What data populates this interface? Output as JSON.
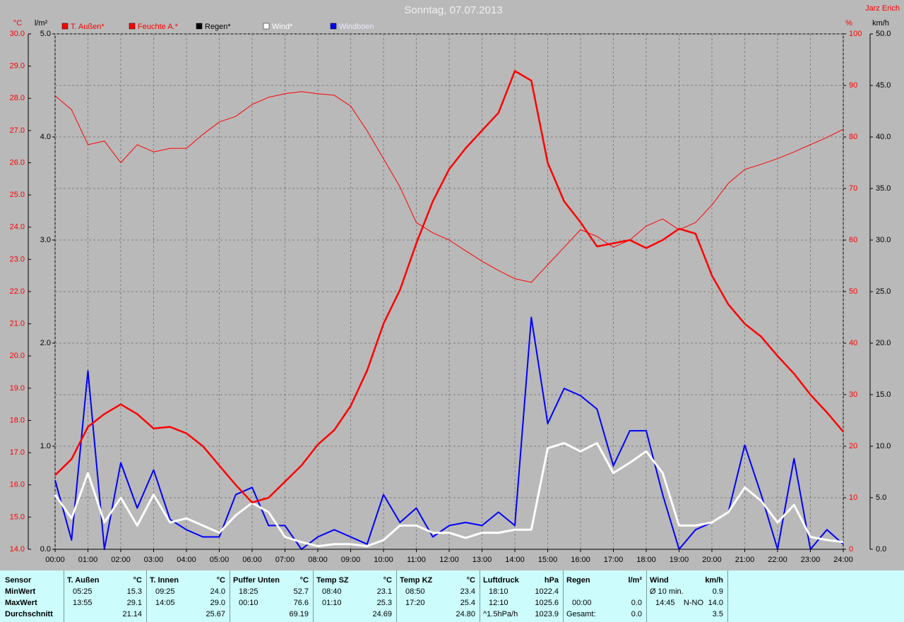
{
  "chart_data": {
    "type": "line",
    "title": "Sonntag, 07.07.2013",
    "author": "Jarz Erich",
    "axis_units": {
      "y": "°C",
      "y3": "l/m²",
      "y2": "%",
      "y4": "km/h"
    },
    "x": [
      "00:00",
      "00:30",
      "01:00",
      "01:30",
      "02:00",
      "02:30",
      "03:00",
      "03:30",
      "04:00",
      "04:30",
      "05:00",
      "05:30",
      "06:00",
      "06:30",
      "07:00",
      "07:30",
      "08:00",
      "08:30",
      "09:00",
      "09:30",
      "10:00",
      "10:30",
      "11:00",
      "11:30",
      "12:00",
      "12:30",
      "13:00",
      "13:30",
      "14:00",
      "14:30",
      "15:00",
      "15:30",
      "16:00",
      "16:30",
      "17:00",
      "17:30",
      "18:00",
      "18:30",
      "19:00",
      "19:30",
      "20:00",
      "20:30",
      "21:00",
      "21:30",
      "22:00",
      "22:30",
      "23:00",
      "23:30",
      "24:00"
    ],
    "xticks": [
      "00:00",
      "01:00",
      "02:00",
      "03:00",
      "04:00",
      "05:00",
      "06:00",
      "07:00",
      "08:00",
      "09:00",
      "10:00",
      "11:00",
      "12:00",
      "13:00",
      "14:00",
      "15:00",
      "16:00",
      "17:00",
      "18:00",
      "19:00",
      "20:00",
      "21:00",
      "22:00",
      "23:00",
      "24:00"
    ],
    "ylim": [
      14,
      30
    ],
    "yticks": [
      {
        "value": 14,
        "label": "14.0"
      },
      {
        "value": 15,
        "label": "15.0"
      },
      {
        "value": 16,
        "label": "16.0"
      },
      {
        "value": 17,
        "label": "17.0"
      },
      {
        "value": 18,
        "label": "18.0"
      },
      {
        "value": 19,
        "label": "19.0"
      },
      {
        "value": 20,
        "label": "20.0"
      },
      {
        "value": 21,
        "label": "21.0"
      },
      {
        "value": 22,
        "label": "22.0"
      },
      {
        "value": 23,
        "label": "23.0"
      },
      {
        "value": 24,
        "label": "24.0"
      },
      {
        "value": 25,
        "label": "25.0"
      },
      {
        "value": 26,
        "label": "26.0"
      },
      {
        "value": 27,
        "label": "27.0"
      },
      {
        "value": 28,
        "label": "28.0"
      },
      {
        "value": 29,
        "label": "29.0"
      },
      {
        "value": 30,
        "label": "30.0"
      }
    ],
    "y3lim": [
      0,
      5
    ],
    "y3ticks": [
      {
        "value": 0,
        "label": "0.0"
      },
      {
        "value": 1,
        "label": "1.0"
      },
      {
        "value": 2,
        "label": "2.0"
      },
      {
        "value": 3,
        "label": "3.0"
      },
      {
        "value": 4,
        "label": "4.0"
      },
      {
        "value": 5,
        "label": "5.0"
      }
    ],
    "y2lim": [
      0,
      100
    ],
    "y2ticks": [
      0,
      10,
      20,
      30,
      40,
      50,
      60,
      70,
      80,
      90,
      100
    ],
    "y4lim": [
      0,
      50
    ],
    "y4ticks": [
      {
        "value": 0,
        "label": "0.0"
      },
      {
        "value": 5,
        "label": "5.0"
      },
      {
        "value": 10,
        "label": "10.0"
      },
      {
        "value": 15,
        "label": "15.0"
      },
      {
        "value": 20,
        "label": "20.0"
      },
      {
        "value": 25,
        "label": "25.0"
      },
      {
        "value": 30,
        "label": "30.0"
      },
      {
        "value": 35,
        "label": "35.0"
      },
      {
        "value": 40,
        "label": "40.0"
      },
      {
        "value": 45,
        "label": "45.0"
      },
      {
        "value": 50,
        "label": "50.0"
      }
    ],
    "grid": true,
    "series": [
      {
        "name": "T. Außen*",
        "color": "#ff0000",
        "axis": "y",
        "width": 2.5,
        "values": [
          16.3,
          16.8,
          17.8,
          18.2,
          18.5,
          18.2,
          17.75,
          17.8,
          17.6,
          17.2,
          16.6,
          16.0,
          15.45,
          15.6,
          16.1,
          16.6,
          17.25,
          17.7,
          18.45,
          19.55,
          21.0,
          22.05,
          23.5,
          24.8,
          25.8,
          26.45,
          27.0,
          27.55,
          28.85,
          28.55,
          26.0,
          24.8,
          24.15,
          23.4,
          23.5,
          23.6,
          23.35,
          23.6,
          23.95,
          23.8,
          22.5,
          21.6,
          21.0,
          20.6,
          20.0,
          19.45,
          18.8,
          18.25,
          17.65
        ]
      },
      {
        "name": "Feuchte A.*",
        "color": "#ff0000",
        "axis": "y2",
        "width": 1,
        "values": [
          88,
          85.3,
          78.5,
          79.2,
          75,
          78.5,
          77.1,
          77.8,
          77.8,
          80.5,
          82.9,
          84,
          86.3,
          87.7,
          88.4,
          88.8,
          88.4,
          88.1,
          86,
          81.2,
          75.8,
          70.3,
          63.4,
          61.4,
          60,
          57.9,
          55.9,
          54.1,
          52.5,
          51.8,
          55.2,
          58.6,
          62,
          60.7,
          58.6,
          60,
          62.7,
          64.1,
          62,
          63.4,
          66.8,
          71,
          73.7,
          74.7,
          75.8,
          77.1,
          78.5,
          79.9,
          81.5
        ]
      },
      {
        "name": "Regen*",
        "color": "#000000",
        "axis": "y3",
        "width": 1,
        "values": [
          0,
          0,
          0,
          0,
          0,
          0,
          0,
          0,
          0,
          0,
          0,
          0,
          0,
          0,
          0,
          0,
          0,
          0,
          0,
          0,
          0,
          0,
          0,
          0,
          0,
          0,
          0,
          0,
          0,
          0,
          0,
          0,
          0,
          0,
          0,
          0,
          0,
          0,
          0,
          0,
          0,
          0,
          0,
          0,
          0,
          0,
          0,
          0,
          0
        ]
      },
      {
        "name": "Wind*",
        "color": "#ffffff",
        "axis": "y4",
        "width": 3,
        "values": [
          5.3,
          3,
          7.4,
          2.6,
          5,
          2.3,
          5.3,
          2.6,
          3,
          2.3,
          1.6,
          3.3,
          4.5,
          3.6,
          1.2,
          0.7,
          0.3,
          0.5,
          0.5,
          0.3,
          0.9,
          2.3,
          2.3,
          1.6,
          1.6,
          1.1,
          1.6,
          1.6,
          1.9,
          1.9,
          9.8,
          10.3,
          9.5,
          10.3,
          7.4,
          8.4,
          9.5,
          7.4,
          2.3,
          2.3,
          2.6,
          3.6,
          6,
          4.7,
          2.6,
          4.3,
          1.2,
          0.9,
          0.7
        ]
      },
      {
        "name": "Windböen",
        "color": "#0000ff",
        "axis": "y4",
        "width": 2,
        "values": [
          6.7,
          0.9,
          17.3,
          0,
          8.4,
          4,
          7.7,
          2.9,
          1.9,
          1.2,
          1.2,
          5.3,
          6,
          2.3,
          2.3,
          0,
          1.2,
          1.9,
          1.2,
          0.5,
          5.3,
          2.6,
          4,
          1.2,
          2.3,
          2.6,
          2.3,
          3.6,
          2.3,
          22.5,
          12.2,
          15.6,
          14.9,
          13.6,
          8.1,
          11.5,
          11.5,
          5.3,
          0,
          1.9,
          2.6,
          3.6,
          10.1,
          5.3,
          0,
          8.8,
          0,
          1.9,
          0.5
        ]
      }
    ]
  },
  "table": {
    "row_labels": [
      "Sensor",
      "MinWert",
      "MaxWert",
      "Durchschnitt"
    ],
    "columns": [
      {
        "title": "T. Außen",
        "unit": "°C",
        "min": {
          "label": "05:25",
          "value": "15.3"
        },
        "max": {
          "label": "13:55",
          "value": "29.1"
        },
        "avg": {
          "value": "21.14"
        }
      },
      {
        "title": "T. Innen",
        "unit": "°C",
        "min": {
          "label": "09:25",
          "value": "24.0"
        },
        "max": {
          "label": "14:05",
          "value": "29.0"
        },
        "avg": {
          "value": "25.67"
        }
      },
      {
        "title": "Puffer Unten",
        "unit": "°C",
        "min": {
          "label": "18:25",
          "value": "52.7"
        },
        "max": {
          "label": "00:10",
          "value": "76.6"
        },
        "avg": {
          "value": "69.19"
        }
      },
      {
        "title": "Temp SZ",
        "unit": "°C",
        "min": {
          "label": "08:40",
          "value": "23.1"
        },
        "max": {
          "label": "01:10",
          "value": "25.3"
        },
        "avg": {
          "value": "24.69"
        }
      },
      {
        "title": "Temp KZ",
        "unit": "°C",
        "min": {
          "label": "08:50",
          "value": "23.4"
        },
        "max": {
          "label": "17:20",
          "value": "25.4"
        },
        "avg": {
          "value": "24.80"
        }
      },
      {
        "title": "Luftdruck",
        "unit": "hPa",
        "min": {
          "label": "18:10",
          "value": "1022.4"
        },
        "max": {
          "label": "12:10",
          "value": "1025.6"
        },
        "avg": {
          "label": "^1.5hPa/h",
          "value": "1023.9"
        }
      },
      {
        "title": "Regen",
        "unit": "l/m²",
        "max": {
          "label": "00:00",
          "value": "0.0"
        },
        "avg": {
          "label": "Gesamt:",
          "value": "0.0"
        }
      },
      {
        "title": "Wind",
        "unit": "km/h",
        "min": {
          "label": "Ø 10 min.",
          "value": "0.9"
        },
        "max": {
          "label": "14:45",
          "direction": "N-NO",
          "value": "14.0"
        },
        "avg": {
          "value": "3.5"
        }
      }
    ]
  }
}
